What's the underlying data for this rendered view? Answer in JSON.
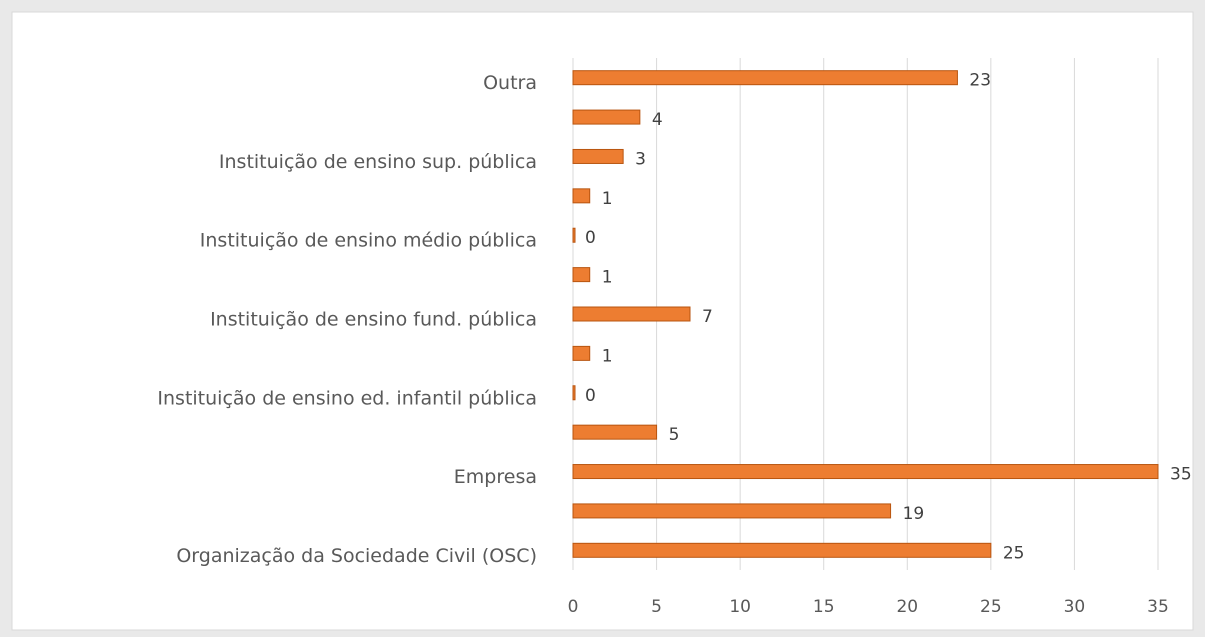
{
  "chart_data": {
    "type": "bar",
    "orientation": "horizontal",
    "categories": [
      "Outra",
      null,
      "Instituição de ensino sup. pública",
      null,
      "Instituição de ensino médio pública",
      null,
      "Instituição de ensino fund. pública",
      null,
      "Instituição de ensino ed. infantil pública",
      null,
      "Empresa",
      null,
      "Organização da Sociedade Civil (OSC)"
    ],
    "values": [
      23,
      4,
      3,
      1,
      0,
      1,
      7,
      1,
      0,
      5,
      35,
      19,
      25
    ],
    "color": "#ed7d31",
    "xlim": [
      0,
      35
    ],
    "xticks": [
      0,
      5,
      10,
      15,
      20,
      25,
      30,
      35
    ],
    "grid": true
  }
}
